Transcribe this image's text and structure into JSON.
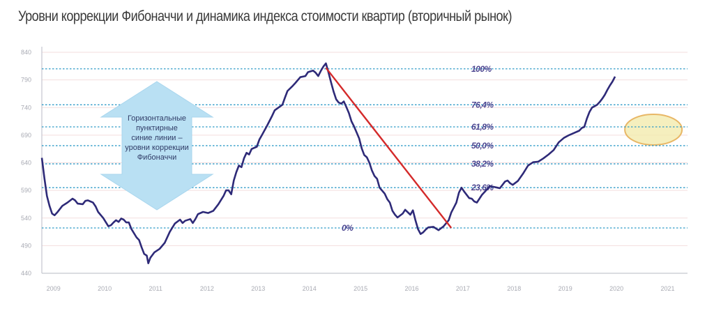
{
  "chart_data": {
    "type": "line",
    "title": "Уровни коррекции Фибоначчи и динамика индекса стоимости квартир (вторичный рынок)",
    "xlabel": "",
    "ylabel": "",
    "ylim": [
      440,
      840
    ],
    "xlim": [
      2009,
      2021.65
    ],
    "y_ticks": [
      840,
      790,
      740,
      690,
      640,
      590,
      540,
      490,
      440
    ],
    "x_ticks": [
      {
        "label": "2009",
        "value": 2009.2
      },
      {
        "label": "2010",
        "value": 2010.2
      },
      {
        "label": "2011",
        "value": 2011.2
      },
      {
        "label": "2012",
        "value": 2012.2
      },
      {
        "label": "2013",
        "value": 2013.2
      },
      {
        "label": "2014",
        "value": 2014.2
      },
      {
        "label": "2015",
        "value": 2015.2
      },
      {
        "label": "2016",
        "value": 2016.2
      },
      {
        "label": "2017",
        "value": 2017.2
      },
      {
        "label": "2018",
        "value": 2018.2
      },
      {
        "label": "2019",
        "value": 2019.2
      },
      {
        "label": "2020",
        "value": 2020.2
      },
      {
        "label": "2021",
        "value": 2021.2
      }
    ],
    "series": [
      {
        "name": "Индекс стоимости квартир (вторичный рынок)",
        "color": "#2e2a78",
        "points": [
          [
            2009.0,
            649
          ],
          [
            2009.05,
            612
          ],
          [
            2009.1,
            580
          ],
          [
            2009.15,
            562
          ],
          [
            2009.2,
            548
          ],
          [
            2009.25,
            545
          ],
          [
            2009.3,
            550
          ],
          [
            2009.4,
            562
          ],
          [
            2009.5,
            568
          ],
          [
            2009.6,
            575
          ],
          [
            2009.65,
            572
          ],
          [
            2009.7,
            566
          ],
          [
            2009.8,
            565
          ],
          [
            2009.85,
            571
          ],
          [
            2009.9,
            572
          ],
          [
            2010.0,
            568
          ],
          [
            2010.05,
            561
          ],
          [
            2010.1,
            551
          ],
          [
            2010.2,
            540
          ],
          [
            2010.3,
            525
          ],
          [
            2010.35,
            527
          ],
          [
            2010.4,
            532
          ],
          [
            2010.45,
            536
          ],
          [
            2010.5,
            533
          ],
          [
            2010.55,
            539
          ],
          [
            2010.6,
            537
          ],
          [
            2010.65,
            532
          ],
          [
            2010.7,
            532
          ],
          [
            2010.75,
            520
          ],
          [
            2010.85,
            505
          ],
          [
            2010.9,
            500
          ],
          [
            2010.95,
            487
          ],
          [
            2011.0,
            475
          ],
          [
            2011.05,
            472
          ],
          [
            2011.08,
            458
          ],
          [
            2011.12,
            468
          ],
          [
            2011.2,
            478
          ],
          [
            2011.3,
            484
          ],
          [
            2011.4,
            495
          ],
          [
            2011.5,
            515
          ],
          [
            2011.6,
            530
          ],
          [
            2011.7,
            537
          ],
          [
            2011.75,
            531
          ],
          [
            2011.8,
            535
          ],
          [
            2011.9,
            538
          ],
          [
            2011.95,
            531
          ],
          [
            2012.0,
            538
          ],
          [
            2012.05,
            547
          ],
          [
            2012.15,
            551
          ],
          [
            2012.25,
            549
          ],
          [
            2012.35,
            553
          ],
          [
            2012.45,
            565
          ],
          [
            2012.55,
            580
          ],
          [
            2012.6,
            590
          ],
          [
            2012.65,
            590
          ],
          [
            2012.7,
            583
          ],
          [
            2012.75,
            608
          ],
          [
            2012.8,
            623
          ],
          [
            2012.85,
            635
          ],
          [
            2012.9,
            632
          ],
          [
            2012.95,
            648
          ],
          [
            2013.0,
            658
          ],
          [
            2013.05,
            655
          ],
          [
            2013.1,
            665
          ],
          [
            2013.2,
            669
          ],
          [
            2013.25,
            682
          ],
          [
            2013.3,
            690
          ],
          [
            2013.4,
            707
          ],
          [
            2013.5,
            725
          ],
          [
            2013.55,
            735
          ],
          [
            2013.7,
            745
          ],
          [
            2013.75,
            758
          ],
          [
            2013.8,
            770
          ],
          [
            2013.9,
            779
          ],
          [
            2013.95,
            784
          ],
          [
            2014.05,
            795
          ],
          [
            2014.15,
            797
          ],
          [
            2014.2,
            804
          ],
          [
            2014.3,
            807
          ],
          [
            2014.35,
            803
          ],
          [
            2014.4,
            797
          ],
          [
            2014.45,
            806
          ],
          [
            2014.5,
            814
          ],
          [
            2014.55,
            820
          ],
          [
            2014.6,
            804
          ],
          [
            2014.65,
            786
          ],
          [
            2014.7,
            769
          ],
          [
            2014.75,
            755
          ],
          [
            2014.8,
            749
          ],
          [
            2014.85,
            747
          ],
          [
            2014.9,
            751
          ],
          [
            2014.95,
            741
          ],
          [
            2015.0,
            730
          ],
          [
            2015.05,
            715
          ],
          [
            2015.1,
            706
          ],
          [
            2015.15,
            695
          ],
          [
            2015.2,
            684
          ],
          [
            2015.25,
            666
          ],
          [
            2015.3,
            654
          ],
          [
            2015.35,
            650
          ],
          [
            2015.4,
            640
          ],
          [
            2015.45,
            626
          ],
          [
            2015.5,
            616
          ],
          [
            2015.55,
            611
          ],
          [
            2015.6,
            595
          ],
          [
            2015.7,
            584
          ],
          [
            2015.75,
            574
          ],
          [
            2015.8,
            568
          ],
          [
            2015.85,
            553
          ],
          [
            2015.9,
            546
          ],
          [
            2015.95,
            541
          ],
          [
            2016.05,
            548
          ],
          [
            2016.1,
            555
          ],
          [
            2016.2,
            546
          ],
          [
            2016.25,
            554
          ],
          [
            2016.3,
            536
          ],
          [
            2016.35,
            520
          ],
          [
            2016.4,
            511
          ],
          [
            2016.45,
            514
          ],
          [
            2016.5,
            519
          ],
          [
            2016.55,
            523
          ],
          [
            2016.65,
            524
          ],
          [
            2016.75,
            518
          ],
          [
            2016.85,
            525
          ],
          [
            2016.95,
            536
          ],
          [
            2017.0,
            550
          ],
          [
            2017.05,
            559
          ],
          [
            2017.1,
            568
          ],
          [
            2017.15,
            586
          ],
          [
            2017.2,
            595
          ],
          [
            2017.25,
            588
          ],
          [
            2017.35,
            576
          ],
          [
            2017.4,
            575
          ],
          [
            2017.45,
            570
          ],
          [
            2017.5,
            568
          ],
          [
            2017.55,
            575
          ],
          [
            2017.6,
            582
          ],
          [
            2017.7,
            592
          ],
          [
            2017.75,
            598
          ],
          [
            2017.8,
            597
          ],
          [
            2017.85,
            596
          ],
          [
            2017.9,
            595
          ],
          [
            2017.95,
            594
          ],
          [
            2018.05,
            606
          ],
          [
            2018.1,
            608
          ],
          [
            2018.15,
            603
          ],
          [
            2018.2,
            600
          ],
          [
            2018.3,
            607
          ],
          [
            2018.4,
            620
          ],
          [
            2018.5,
            635
          ],
          [
            2018.6,
            641
          ],
          [
            2018.7,
            642
          ],
          [
            2018.8,
            648
          ],
          [
            2018.9,
            655
          ],
          [
            2019.0,
            663
          ],
          [
            2019.1,
            677
          ],
          [
            2019.2,
            685
          ],
          [
            2019.3,
            690
          ],
          [
            2019.4,
            694
          ],
          [
            2019.5,
            698
          ],
          [
            2019.55,
            703
          ],
          [
            2019.6,
            705
          ],
          [
            2019.65,
            720
          ],
          [
            2019.7,
            732
          ],
          [
            2019.75,
            740
          ],
          [
            2019.85,
            745
          ],
          [
            2019.9,
            750
          ],
          [
            2019.95,
            756
          ],
          [
            2020.0,
            763
          ],
          [
            2020.05,
            772
          ],
          [
            2020.1,
            780
          ],
          [
            2020.15,
            787
          ],
          [
            2020.2,
            796
          ]
        ]
      }
    ],
    "fib_levels": [
      {
        "label": "100%",
        "value": 810
      },
      {
        "label": "76,4%",
        "value": 745
      },
      {
        "label": "61,8%",
        "value": 705
      },
      {
        "label": "50,0%",
        "value": 671
      },
      {
        "label": "38,2%",
        "value": 638
      },
      {
        "label": "23,6%",
        "value": 595
      },
      {
        "label": "0%",
        "value": 522
      }
    ],
    "trend_line": {
      "from": [
        2014.55,
        812
      ],
      "to": [
        2017.0,
        522
      ],
      "color": "#d42a2a"
    },
    "annotation": "Горизонтальные пунктирные синие линии – уровни коррекции Фибоначчи",
    "highlight": {
      "center": [
        2020.95,
        700
      ],
      "color": "#f2e9a8"
    }
  }
}
